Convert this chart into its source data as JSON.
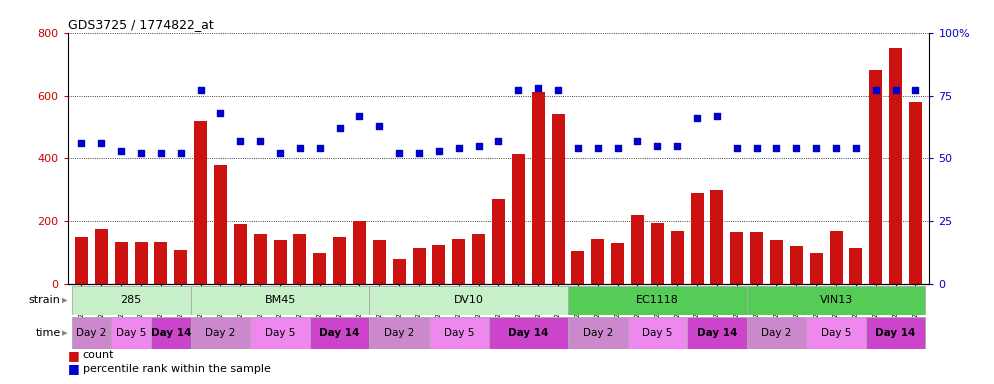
{
  "title": "GDS3725 / 1774822_at",
  "samples": [
    "GSM291115",
    "GSM291116",
    "GSM291117",
    "GSM291140",
    "GSM291141",
    "GSM291142",
    "GSM291000",
    "GSM291001",
    "GSM291462",
    "GSM291523",
    "GSM291524",
    "GSM291555",
    "GSM296856",
    "GSM296857",
    "GSM290992",
    "GSM290993",
    "GSM290989",
    "GSM290990",
    "GSM290991",
    "GSM291538",
    "GSM291539",
    "GSM291540",
    "GSM290994",
    "GSM290995",
    "GSM290996",
    "GSM291435",
    "GSM291439",
    "GSM291445",
    "GSM291554",
    "GSM296858",
    "GSM296859",
    "GSM290997",
    "GSM290998",
    "GSM290999",
    "GSM290901",
    "GSM290902",
    "GSM290903",
    "GSM291525",
    "GSM296860",
    "GSM296861",
    "GSM291002",
    "GSM291003",
    "GSM292045"
  ],
  "counts": [
    150,
    175,
    135,
    135,
    135,
    110,
    520,
    380,
    190,
    160,
    140,
    160,
    100,
    150,
    200,
    140,
    80,
    115,
    125,
    145,
    160,
    270,
    415,
    610,
    540,
    105,
    145,
    130,
    220,
    195,
    170,
    290,
    300,
    165,
    165,
    140,
    120,
    100,
    170,
    115,
    680,
    750,
    580
  ],
  "percentiles": [
    56,
    56,
    53,
    52,
    52,
    52,
    77,
    68,
    57,
    57,
    52,
    54,
    54,
    62,
    67,
    63,
    52,
    52,
    53,
    54,
    55,
    57,
    77,
    78,
    77,
    54,
    54,
    54,
    57,
    55,
    55,
    66,
    67,
    54,
    54,
    54,
    54,
    54,
    54,
    54,
    77,
    77,
    77
  ],
  "strains": [
    {
      "name": "285",
      "start": 0,
      "end": 6,
      "light": true
    },
    {
      "name": "BM45",
      "start": 6,
      "end": 15,
      "light": true
    },
    {
      "name": "DV10",
      "start": 15,
      "end": 25,
      "light": true
    },
    {
      "name": "EC1118",
      "start": 25,
      "end": 34,
      "light": false
    },
    {
      "name": "VIN13",
      "start": 34,
      "end": 43,
      "light": false
    }
  ],
  "times": [
    {
      "label": "Day 2",
      "start": 0,
      "end": 2,
      "shade": 0
    },
    {
      "label": "Day 5",
      "start": 2,
      "end": 4,
      "shade": 1
    },
    {
      "label": "Day 14",
      "start": 4,
      "end": 6,
      "shade": 2
    },
    {
      "label": "Day 2",
      "start": 6,
      "end": 9,
      "shade": 0
    },
    {
      "label": "Day 5",
      "start": 9,
      "end": 12,
      "shade": 1
    },
    {
      "label": "Day 14",
      "start": 12,
      "end": 15,
      "shade": 2
    },
    {
      "label": "Day 2",
      "start": 15,
      "end": 18,
      "shade": 0
    },
    {
      "label": "Day 5",
      "start": 18,
      "end": 21,
      "shade": 1
    },
    {
      "label": "Day 14",
      "start": 21,
      "end": 25,
      "shade": 2
    },
    {
      "label": "Day 2",
      "start": 25,
      "end": 28,
      "shade": 0
    },
    {
      "label": "Day 5",
      "start": 28,
      "end": 31,
      "shade": 1
    },
    {
      "label": "Day 14",
      "start": 31,
      "end": 34,
      "shade": 2
    },
    {
      "label": "Day 2",
      "start": 34,
      "end": 37,
      "shade": 0
    },
    {
      "label": "Day 5",
      "start": 37,
      "end": 40,
      "shade": 1
    },
    {
      "label": "Day 14",
      "start": 40,
      "end": 43,
      "shade": 2
    }
  ],
  "bar_color": "#cc1111",
  "dot_color": "#0000cc",
  "ylim_left": [
    0,
    800
  ],
  "ylim_right": [
    0,
    100
  ],
  "yticks_left": [
    0,
    200,
    400,
    600,
    800
  ],
  "yticks_right": [
    0,
    25,
    50,
    75,
    100
  ],
  "strain_light_color": "#c8f0c8",
  "strain_dark_color": "#55cc55",
  "time_colors": [
    "#cc88cc",
    "#ee88ee",
    "#cc44cc"
  ]
}
